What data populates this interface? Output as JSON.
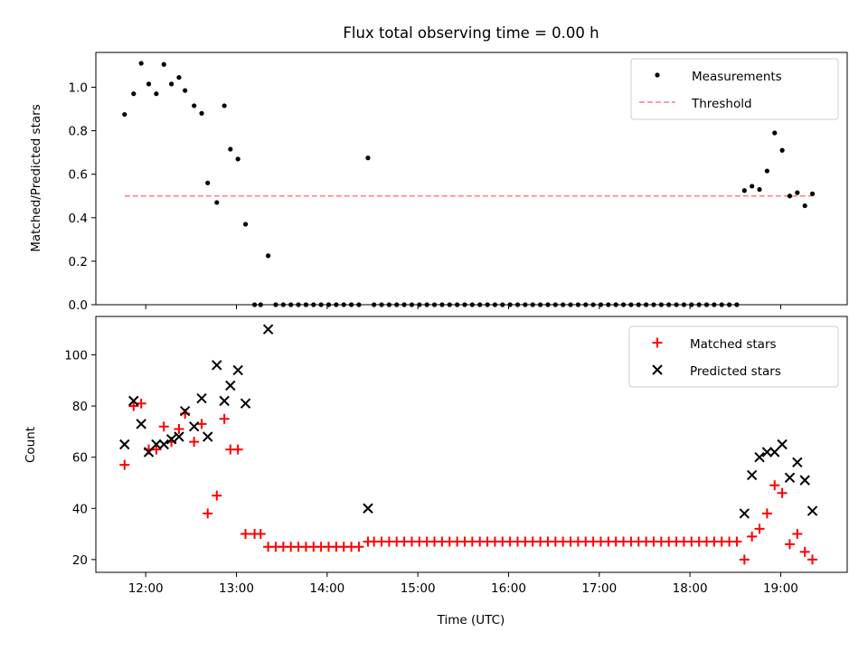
{
  "chart_data": [
    {
      "type": "scatter",
      "title": "Flux total observing time = 0.00 h",
      "xlabel": "",
      "ylabel": "Matched/Predicted stars",
      "ylim": [
        0,
        1.16
      ],
      "yticks": [
        0.0,
        0.2,
        0.4,
        0.6,
        0.8,
        1.0
      ],
      "ytick_labels": [
        "0.0",
        "0.2",
        "0.4",
        "0.6",
        "0.8",
        "1.0"
      ],
      "xlim": [
        "11:27",
        "19:44"
      ],
      "x_tick_values": [
        "12:00",
        "13:00",
        "14:00",
        "15:00",
        "16:00",
        "17:00",
        "18:00",
        "19:00"
      ],
      "legend_position": "top-right",
      "series": [
        {
          "name": "Measurements",
          "style": "dot",
          "color": "#000000",
          "points": [
            [
              "11:46",
              0.875
            ],
            [
              "11:52",
              0.97
            ],
            [
              "11:57",
              1.11
            ],
            [
              "12:02",
              1.015
            ],
            [
              "12:07",
              0.97
            ],
            [
              "12:12",
              1.105
            ],
            [
              "12:17",
              1.015
            ],
            [
              "12:22",
              1.045
            ],
            [
              "12:26",
              0.985
            ],
            [
              "12:32",
              0.915
            ],
            [
              "12:37",
              0.88
            ],
            [
              "12:41",
              0.56
            ],
            [
              "12:47",
              0.47
            ],
            [
              "12:52",
              0.915
            ],
            [
              "12:56",
              0.715
            ],
            [
              "13:01",
              0.67
            ],
            [
              "13:06",
              0.37
            ],
            [
              "13:12",
              0.0
            ],
            [
              "13:16",
              0.0
            ],
            [
              "13:21",
              0.225
            ],
            [
              "13:26",
              0.0
            ],
            [
              "13:31",
              0.0
            ],
            [
              "13:36",
              0.0
            ],
            [
              "13:41",
              0.0
            ],
            [
              "13:46",
              0.0
            ],
            [
              "13:51",
              0.0
            ],
            [
              "13:56",
              0.0
            ],
            [
              "14:01",
              0.0
            ],
            [
              "14:06",
              0.0
            ],
            [
              "14:11",
              0.0
            ],
            [
              "14:16",
              0.0
            ],
            [
              "14:21",
              0.0
            ],
            [
              "14:27",
              0.675
            ],
            [
              "14:31",
              0.0
            ],
            [
              "14:36",
              0.0
            ],
            [
              "14:41",
              0.0
            ],
            [
              "14:46",
              0.0
            ],
            [
              "14:51",
              0.0
            ],
            [
              "14:56",
              0.0
            ],
            [
              "15:01",
              0.0
            ],
            [
              "15:06",
              0.0
            ],
            [
              "15:11",
              0.0
            ],
            [
              "15:16",
              0.0
            ],
            [
              "15:21",
              0.0
            ],
            [
              "15:26",
              0.0
            ],
            [
              "15:31",
              0.0
            ],
            [
              "15:36",
              0.0
            ],
            [
              "15:41",
              0.0
            ],
            [
              "15:46",
              0.0
            ],
            [
              "15:51",
              0.0
            ],
            [
              "15:56",
              0.0
            ],
            [
              "16:01",
              0.0
            ],
            [
              "16:06",
              0.0
            ],
            [
              "16:11",
              0.0
            ],
            [
              "16:16",
              0.0
            ],
            [
              "16:21",
              0.0
            ],
            [
              "16:26",
              0.0
            ],
            [
              "16:31",
              0.0
            ],
            [
              "16:36",
              0.0
            ],
            [
              "16:41",
              0.0
            ],
            [
              "16:46",
              0.0
            ],
            [
              "16:51",
              0.0
            ],
            [
              "16:56",
              0.0
            ],
            [
              "17:01",
              0.0
            ],
            [
              "17:06",
              0.0
            ],
            [
              "17:11",
              0.0
            ],
            [
              "17:16",
              0.0
            ],
            [
              "17:21",
              0.0
            ],
            [
              "17:26",
              0.0
            ],
            [
              "17:31",
              0.0
            ],
            [
              "17:36",
              0.0
            ],
            [
              "17:41",
              0.0
            ],
            [
              "17:46",
              0.0
            ],
            [
              "17:51",
              0.0
            ],
            [
              "17:56",
              0.0
            ],
            [
              "18:01",
              0.0
            ],
            [
              "18:06",
              0.0
            ],
            [
              "18:11",
              0.0
            ],
            [
              "18:16",
              0.0
            ],
            [
              "18:21",
              0.0
            ],
            [
              "18:26",
              0.0
            ],
            [
              "18:31",
              0.0
            ],
            [
              "18:36",
              0.525
            ],
            [
              "18:41",
              0.545
            ],
            [
              "18:46",
              0.53
            ],
            [
              "18:51",
              0.615
            ],
            [
              "18:56",
              0.79
            ],
            [
              "19:01",
              0.71
            ],
            [
              "19:06",
              0.5
            ],
            [
              "19:11",
              0.515
            ],
            [
              "19:16",
              0.455
            ],
            [
              "19:21",
              0.51
            ]
          ]
        },
        {
          "name": "Threshold",
          "style": "dashed-line",
          "color": "#ff7f7f",
          "points": [
            [
              "11:46",
              0.5
            ],
            [
              "19:21",
              0.5
            ]
          ]
        }
      ]
    },
    {
      "type": "scatter",
      "title": "",
      "xlabel": "Time (UTC)",
      "ylabel": "Count",
      "ylim": [
        15,
        115
      ],
      "yticks": [
        20,
        40,
        60,
        80,
        100
      ],
      "ytick_labels": [
        "20",
        "40",
        "60",
        "80",
        "100"
      ],
      "xlim": [
        "11:27",
        "19:44"
      ],
      "x_tick_values": [
        "12:00",
        "13:00",
        "14:00",
        "15:00",
        "16:00",
        "17:00",
        "18:00",
        "19:00"
      ],
      "xtick_labels": [
        "12:00",
        "13:00",
        "14:00",
        "15:00",
        "16:00",
        "17:00",
        "18:00",
        "19:00"
      ],
      "legend_position": "top-right",
      "series": [
        {
          "name": "Matched stars",
          "style": "plus",
          "color": "#ff0000",
          "points": [
            [
              "11:46",
              57
            ],
            [
              "11:52",
              80
            ],
            [
              "11:57",
              81
            ],
            [
              "12:02",
              63
            ],
            [
              "12:07",
              63
            ],
            [
              "12:12",
              72
            ],
            [
              "12:17",
              66
            ],
            [
              "12:22",
              71
            ],
            [
              "12:26",
              77
            ],
            [
              "12:32",
              66
            ],
            [
              "12:37",
              73
            ],
            [
              "12:41",
              38
            ],
            [
              "12:47",
              45
            ],
            [
              "12:52",
              75
            ],
            [
              "12:56",
              63
            ],
            [
              "13:01",
              63
            ],
            [
              "13:06",
              30
            ],
            [
              "13:12",
              30
            ],
            [
              "13:16",
              30
            ],
            [
              "13:21",
              25
            ],
            [
              "13:26",
              25
            ],
            [
              "13:31",
              25
            ],
            [
              "13:36",
              25
            ],
            [
              "13:41",
              25
            ],
            [
              "13:46",
              25
            ],
            [
              "13:51",
              25
            ],
            [
              "13:56",
              25
            ],
            [
              "14:01",
              25
            ],
            [
              "14:06",
              25
            ],
            [
              "14:11",
              25
            ],
            [
              "14:16",
              25
            ],
            [
              "14:21",
              25
            ],
            [
              "14:27",
              27
            ],
            [
              "14:31",
              27
            ],
            [
              "14:36",
              27
            ],
            [
              "14:41",
              27
            ],
            [
              "14:46",
              27
            ],
            [
              "14:51",
              27
            ],
            [
              "14:56",
              27
            ],
            [
              "15:01",
              27
            ],
            [
              "15:06",
              27
            ],
            [
              "15:11",
              27
            ],
            [
              "15:16",
              27
            ],
            [
              "15:21",
              27
            ],
            [
              "15:26",
              27
            ],
            [
              "15:31",
              27
            ],
            [
              "15:36",
              27
            ],
            [
              "15:41",
              27
            ],
            [
              "15:46",
              27
            ],
            [
              "15:51",
              27
            ],
            [
              "15:56",
              27
            ],
            [
              "16:01",
              27
            ],
            [
              "16:06",
              27
            ],
            [
              "16:11",
              27
            ],
            [
              "16:16",
              27
            ],
            [
              "16:21",
              27
            ],
            [
              "16:26",
              27
            ],
            [
              "16:31",
              27
            ],
            [
              "16:36",
              27
            ],
            [
              "16:41",
              27
            ],
            [
              "16:46",
              27
            ],
            [
              "16:51",
              27
            ],
            [
              "16:56",
              27
            ],
            [
              "17:01",
              27
            ],
            [
              "17:06",
              27
            ],
            [
              "17:11",
              27
            ],
            [
              "17:16",
              27
            ],
            [
              "17:21",
              27
            ],
            [
              "17:26",
              27
            ],
            [
              "17:31",
              27
            ],
            [
              "17:36",
              27
            ],
            [
              "17:41",
              27
            ],
            [
              "17:46",
              27
            ],
            [
              "17:51",
              27
            ],
            [
              "17:56",
              27
            ],
            [
              "18:01",
              27
            ],
            [
              "18:06",
              27
            ],
            [
              "18:11",
              27
            ],
            [
              "18:16",
              27
            ],
            [
              "18:21",
              27
            ],
            [
              "18:26",
              27
            ],
            [
              "18:31",
              27
            ],
            [
              "18:36",
              20
            ],
            [
              "18:41",
              29
            ],
            [
              "18:46",
              32
            ],
            [
              "18:51",
              38
            ],
            [
              "18:56",
              49
            ],
            [
              "19:01",
              46
            ],
            [
              "19:06",
              26
            ],
            [
              "19:11",
              30
            ],
            [
              "19:16",
              23
            ],
            [
              "19:21",
              20
            ]
          ]
        },
        {
          "name": "Predicted stars",
          "style": "x",
          "color": "#000000",
          "points": [
            [
              "11:46",
              65
            ],
            [
              "11:52",
              82
            ],
            [
              "11:57",
              73
            ],
            [
              "12:02",
              62
            ],
            [
              "12:07",
              65
            ],
            [
              "12:12",
              65
            ],
            [
              "12:17",
              67
            ],
            [
              "12:22",
              68
            ],
            [
              "12:26",
              78
            ],
            [
              "12:32",
              72
            ],
            [
              "12:37",
              83
            ],
            [
              "12:41",
              68
            ],
            [
              "12:47",
              96
            ],
            [
              "12:52",
              82
            ],
            [
              "12:56",
              88
            ],
            [
              "13:01",
              94
            ],
            [
              "13:06",
              81
            ],
            [
              "13:21",
              110
            ],
            [
              "14:27",
              40
            ],
            [
              "18:36",
              38
            ],
            [
              "18:41",
              53
            ],
            [
              "18:46",
              60
            ],
            [
              "18:51",
              62
            ],
            [
              "18:56",
              62
            ],
            [
              "19:01",
              65
            ],
            [
              "19:06",
              52
            ],
            [
              "19:11",
              58
            ],
            [
              "19:16",
              51
            ],
            [
              "19:21",
              39
            ]
          ]
        }
      ]
    }
  ]
}
